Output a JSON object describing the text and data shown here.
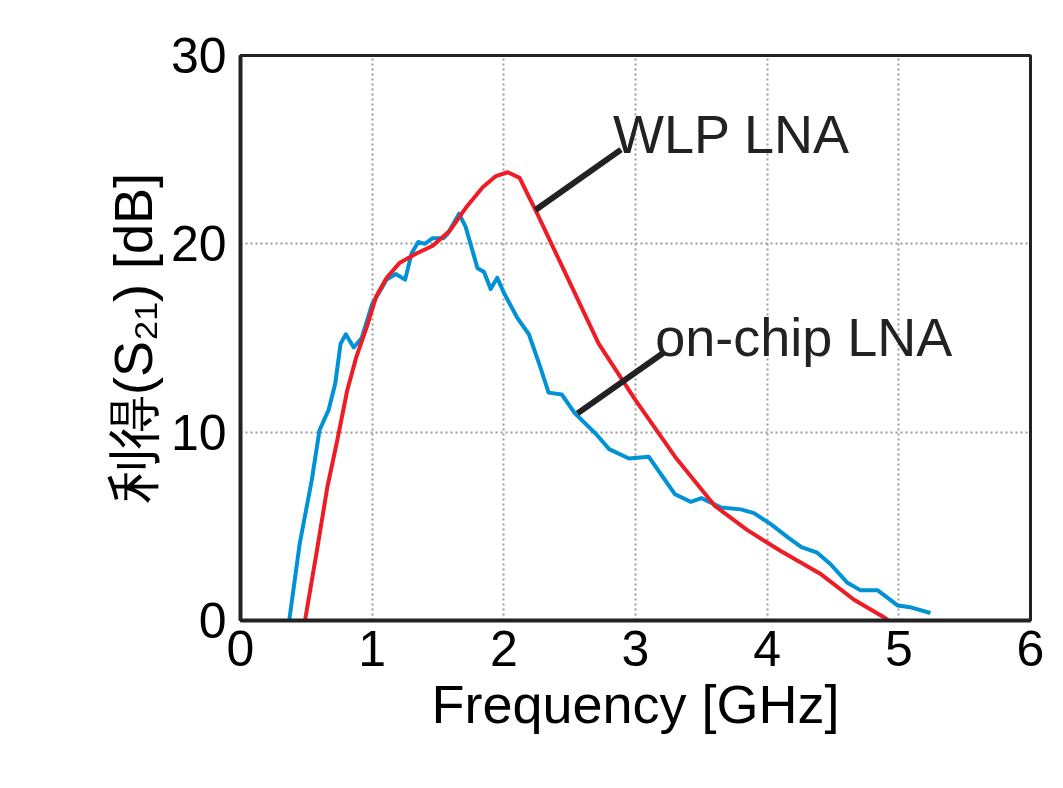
{
  "chart_data": {
    "type": "line",
    "xlabel": "Frequency [GHz]",
    "ylabel": "利得(S₂₁) [dB]",
    "xlim": [
      0,
      6
    ],
    "xticks": [
      0,
      1,
      2,
      3,
      4,
      5,
      6
    ],
    "ylim": [
      0,
      30
    ],
    "yticks": [
      0,
      10,
      20,
      30
    ],
    "grid": true,
    "line_style": "solid",
    "marker": "none",
    "series": [
      {
        "color": "#0092d5",
        "x": [
          0.37,
          0.45,
          0.54,
          0.6,
          0.67,
          0.72,
          0.76,
          0.8,
          0.86,
          0.92,
          1.0,
          1.06,
          1.11,
          1.18,
          1.25,
          1.3,
          1.35,
          1.4,
          1.46,
          1.54,
          1.57,
          1.66,
          1.71,
          1.8,
          1.85,
          1.9,
          1.95,
          2.0,
          2.1,
          2.19,
          2.27,
          2.34,
          2.44,
          2.54,
          2.7,
          2.8,
          2.95,
          3.1,
          3.2,
          3.3,
          3.42,
          3.5,
          3.65,
          3.8,
          3.9,
          4.03,
          4.16,
          4.26,
          4.38,
          4.48,
          4.61,
          4.71,
          4.84,
          4.99,
          5.09,
          5.24
        ],
        "values": [
          0,
          4.1,
          7.4,
          10.1,
          11.2,
          12.6,
          14.7,
          15.2,
          14.5,
          15.0,
          16.8,
          17.5,
          18.1,
          18.4,
          18.1,
          19.5,
          20.1,
          20.0,
          20.3,
          20.3,
          20.5,
          21.6,
          20.9,
          18.7,
          18.5,
          17.6,
          18.2,
          17.4,
          16.1,
          15.2,
          13.6,
          12.1,
          12.0,
          11.0,
          9.9,
          9.1,
          8.6,
          8.7,
          7.7,
          6.7,
          6.3,
          6.5,
          6.0,
          5.9,
          5.7,
          5.1,
          4.4,
          3.9,
          3.6,
          3.0,
          2.0,
          1.6,
          1.6,
          0.8,
          0.7,
          0.4
        ]
      },
      {
        "color": "#ee1c25",
        "x": [
          0.49,
          0.58,
          0.66,
          0.73,
          0.81,
          0.88,
          0.96,
          1.03,
          1.11,
          1.21,
          1.34,
          1.46,
          1.59,
          1.71,
          1.84,
          1.94,
          2.03,
          2.12,
          2.19,
          2.24,
          2.47,
          2.72,
          3.0,
          3.3,
          3.6,
          3.85,
          4.1,
          4.4,
          4.66,
          4.88,
          4.92
        ],
        "values": [
          0,
          3.7,
          7.1,
          9.4,
          12.2,
          14.0,
          15.6,
          17.2,
          18.2,
          19.0,
          19.5,
          19.9,
          20.7,
          21.9,
          23.0,
          23.6,
          23.8,
          23.5,
          22.5,
          21.8,
          18.4,
          14.7,
          11.7,
          8.7,
          6.1,
          4.8,
          3.7,
          2.5,
          1.1,
          0.2,
          0
        ]
      }
    ],
    "annotations": [
      {
        "text": "WLP LNA",
        "x": 2.24,
        "y": 21.8
      },
      {
        "text": "on-chip LNA",
        "x": 2.56,
        "y": 11.0
      }
    ]
  }
}
